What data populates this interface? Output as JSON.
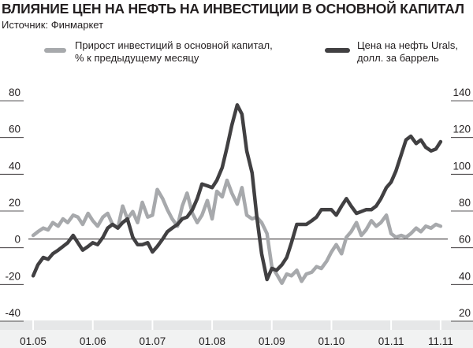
{
  "title": "ВЛИЯНИЕ ЦЕН НА НЕФТЬ НА ИНВЕСТИЦИИ В ОСНОВНОЙ КАПИТАЛ",
  "source": "Источник: Финмаркет",
  "legend": [
    {
      "label": "Прирост инвестиций в основной капитал,\n% к предыдущему месяцу",
      "color": "#a7a9ac"
    },
    {
      "label": "Цена на нефть Urals,\nдолл. за баррель",
      "color": "#414042"
    }
  ],
  "chart_data": {
    "type": "line",
    "title": "ВЛИЯНИЕ ЦЕН НА НЕФТЬ НА ИНВЕСТИЦИИ В ОСНОВНОЙ КАПИТАЛ",
    "x_labels": [
      "01.05",
      "01.06",
      "01.07",
      "01.08",
      "01.09",
      "01.10",
      "01.11",
      "11.11"
    ],
    "y_left": {
      "min": -40,
      "max": 80,
      "ticks": [
        80,
        60,
        40,
        20,
        0,
        -20,
        -40
      ]
    },
    "y_right": {
      "min": 20,
      "max": 140,
      "ticks": [
        140,
        120,
        100,
        80,
        60,
        40,
        20
      ]
    },
    "grid": "zero line only",
    "legend_position": "top",
    "series": [
      {
        "name": "Прирост инвестиций в основной капитал, % к предыдущему месяцу",
        "axis": "left",
        "color": "#a7a9ac",
        "x": [
          2005.0,
          2005.08,
          2005.17,
          2005.25,
          2005.33,
          2005.42,
          2005.5,
          2005.58,
          2005.67,
          2005.75,
          2005.83,
          2005.92,
          2006.0,
          2006.08,
          2006.17,
          2006.25,
          2006.33,
          2006.42,
          2006.5,
          2006.58,
          2006.67,
          2006.75,
          2006.83,
          2006.92,
          2007.0,
          2007.08,
          2007.17,
          2007.25,
          2007.33,
          2007.42,
          2007.5,
          2007.58,
          2007.67,
          2007.75,
          2007.83,
          2007.92,
          2008.0,
          2008.08,
          2008.17,
          2008.25,
          2008.33,
          2008.42,
          2008.5,
          2008.58,
          2008.67,
          2008.75,
          2008.83,
          2008.92,
          2009.0,
          2009.08,
          2009.17,
          2009.25,
          2009.33,
          2009.42,
          2009.5,
          2009.58,
          2009.67,
          2009.75,
          2009.83,
          2009.92,
          2010.0,
          2010.08,
          2010.17,
          2010.25,
          2010.33,
          2010.42,
          2010.5,
          2010.58,
          2010.67,
          2010.75,
          2010.83,
          2010.92,
          2011.0,
          2011.08,
          2011.17,
          2011.25,
          2011.33,
          2011.42,
          2011.5,
          2011.58,
          2011.67,
          2011.75,
          2011.83
        ],
        "values": [
          2,
          4,
          6,
          5,
          9,
          7,
          11,
          9,
          13,
          12,
          8,
          14,
          10,
          7,
          12,
          14,
          8,
          6,
          18,
          11,
          15,
          9,
          20,
          12,
          13,
          27,
          22,
          16,
          11,
          7,
          18,
          25,
          14,
          9,
          13,
          21,
          11,
          26,
          23,
          32,
          25,
          19,
          28,
          13,
          11,
          12,
          9,
          3,
          -15,
          -19,
          -24,
          -19,
          -20,
          -17,
          -23,
          -19,
          -18,
          -15,
          -16,
          -12,
          -7,
          -3,
          -8,
          1,
          4,
          9,
          2,
          5,
          10,
          7,
          9,
          13,
          3,
          1,
          2,
          1,
          3,
          6,
          4,
          7,
          6,
          8,
          7
        ]
      },
      {
        "name": "Цена на нефть Urals, долл. за баррель",
        "axis": "right",
        "color": "#414042",
        "x": [
          2005.0,
          2005.08,
          2005.17,
          2005.25,
          2005.33,
          2005.42,
          2005.5,
          2005.58,
          2005.67,
          2005.75,
          2005.83,
          2005.92,
          2006.0,
          2006.08,
          2006.17,
          2006.25,
          2006.33,
          2006.42,
          2006.5,
          2006.58,
          2006.67,
          2006.75,
          2006.83,
          2006.92,
          2007.0,
          2007.08,
          2007.17,
          2007.25,
          2007.33,
          2007.42,
          2007.5,
          2007.58,
          2007.67,
          2007.75,
          2007.83,
          2007.92,
          2008.0,
          2008.08,
          2008.17,
          2008.25,
          2008.33,
          2008.42,
          2008.5,
          2008.58,
          2008.67,
          2008.75,
          2008.83,
          2008.92,
          2009.0,
          2009.08,
          2009.17,
          2009.25,
          2009.33,
          2009.42,
          2009.5,
          2009.58,
          2009.67,
          2009.75,
          2009.83,
          2009.92,
          2010.0,
          2010.08,
          2010.17,
          2010.25,
          2010.33,
          2010.42,
          2010.5,
          2010.58,
          2010.67,
          2010.75,
          2010.83,
          2010.92,
          2011.0,
          2011.08,
          2011.17,
          2011.25,
          2011.33,
          2011.42,
          2011.5,
          2011.58,
          2011.67,
          2011.75,
          2011.83
        ],
        "values": [
          40,
          46,
          50,
          49,
          52,
          54,
          56,
          58,
          62,
          58,
          54,
          56,
          58,
          57,
          61,
          66,
          68,
          66,
          69,
          71,
          61,
          57,
          57,
          58,
          53,
          56,
          60,
          64,
          66,
          68,
          71,
          72,
          76,
          82,
          90,
          89,
          88,
          92,
          99,
          110,
          122,
          133,
          128,
          108,
          96,
          72,
          52,
          38,
          44,
          43,
          46,
          50,
          58,
          68,
          68,
          68,
          70,
          72,
          76,
          76,
          76,
          73,
          78,
          82,
          78,
          74,
          75,
          76,
          76,
          78,
          82,
          88,
          91,
          97,
          106,
          114,
          116,
          112,
          114,
          110,
          108,
          109,
          113
        ]
      }
    ]
  }
}
